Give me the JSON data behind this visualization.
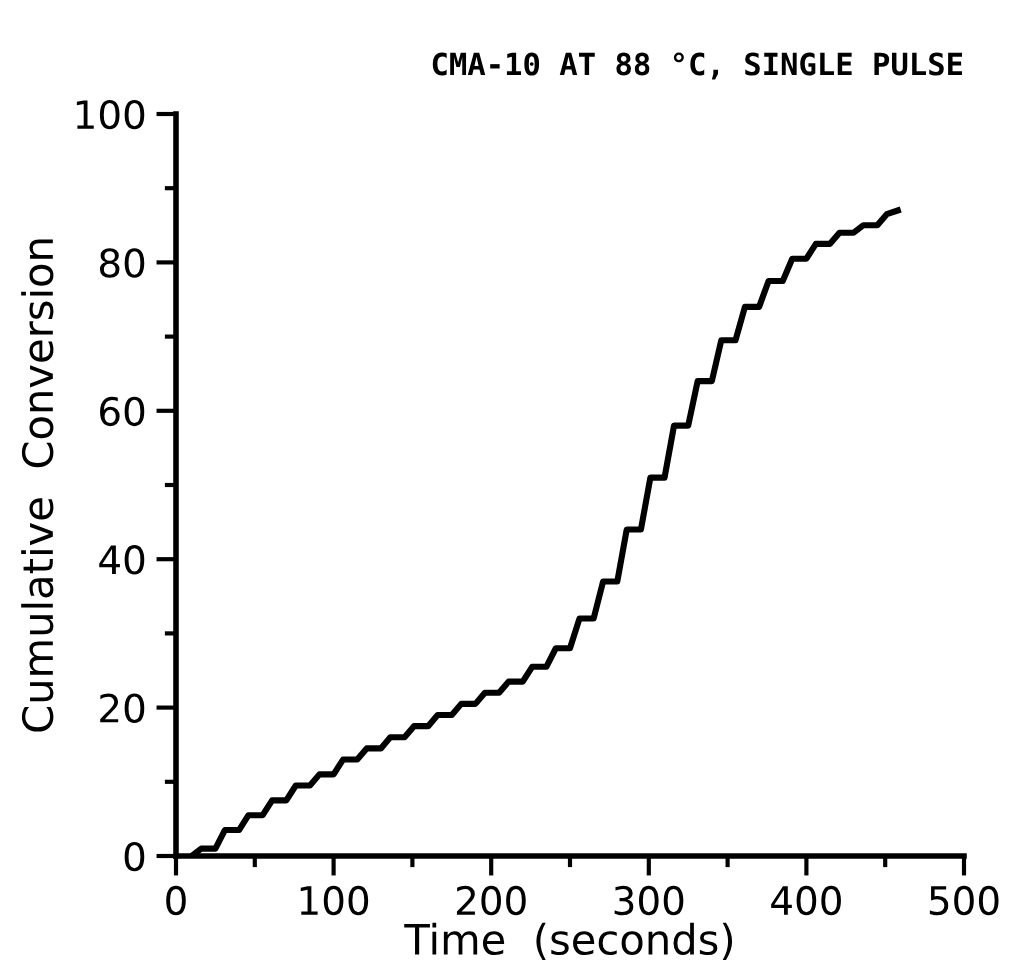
{
  "chart_data": {
    "type": "line",
    "title": "CMA-10 AT 88 °C, SINGLE PULSE",
    "xlabel": "Time  (seconds)",
    "ylabel": "Cumulative  Conversion",
    "x": [
      10,
      16,
      25,
      31,
      40,
      46,
      55,
      61,
      70,
      76,
      85,
      91,
      100,
      106,
      115,
      121,
      130,
      136,
      145,
      151,
      160,
      166,
      175,
      181,
      190,
      196,
      205,
      211,
      220,
      226,
      235,
      241,
      250,
      256,
      265,
      271,
      280,
      286,
      295,
      301,
      310,
      316,
      325,
      331,
      340,
      346,
      355,
      361,
      370,
      376,
      385,
      391,
      400,
      406,
      415,
      421,
      430,
      436,
      445,
      451,
      458
    ],
    "series": [
      {
        "color": "#000000",
        "values": [
          0,
          1,
          1,
          3.5,
          3.5,
          5.5,
          5.5,
          7.5,
          7.5,
          9.5,
          9.5,
          11,
          11,
          13,
          13,
          14.5,
          14.5,
          16,
          16,
          17.5,
          17.5,
          19,
          19,
          20.5,
          20.5,
          22,
          22,
          23.5,
          23.5,
          25.5,
          25.5,
          28,
          28,
          32,
          32,
          37,
          37,
          44,
          44,
          51,
          51,
          58,
          58,
          64,
          64,
          69.5,
          69.5,
          74,
          74,
          77.5,
          77.5,
          80.5,
          80.5,
          82.5,
          82.5,
          84,
          84,
          85,
          85,
          86.5,
          87
        ]
      }
    ],
    "xlim": [
      0,
      500
    ],
    "xticks": [
      0,
      100,
      200,
      300,
      400,
      500
    ],
    "ylim": [
      0,
      100
    ],
    "yticks": [
      0,
      20,
      40,
      60,
      80,
      100
    ],
    "grid": false,
    "legend": false,
    "line_style": "solid",
    "marker": "none"
  }
}
